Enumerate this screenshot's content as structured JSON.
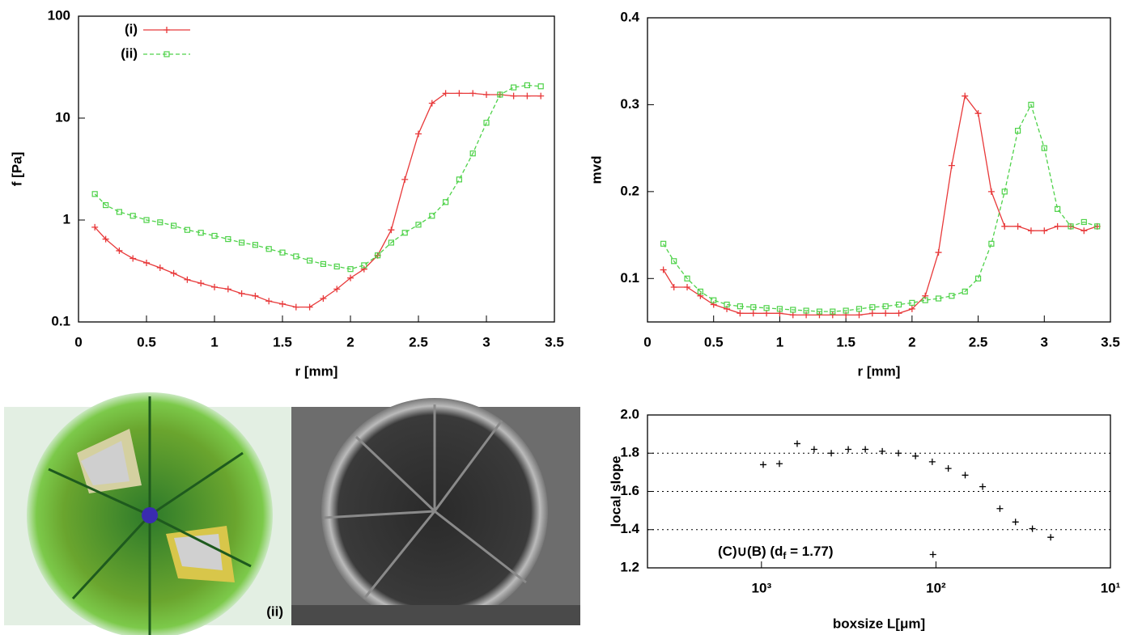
{
  "chart_data": [
    {
      "type": "line",
      "ylog": true,
      "ylabel": "f [Pa]",
      "xlabel": "r [mm]",
      "xlim": [
        0,
        3.5
      ],
      "xticks": [
        0,
        0.5,
        1,
        1.5,
        2,
        2.5,
        3,
        3.5
      ],
      "ylim": [
        0.1,
        100
      ],
      "yticks": [
        0.1,
        1,
        10,
        100
      ],
      "x": [
        0.12,
        0.2,
        0.3,
        0.4,
        0.5,
        0.6,
        0.7,
        0.8,
        0.9,
        1.0,
        1.1,
        1.2,
        1.3,
        1.4,
        1.5,
        1.6,
        1.7,
        1.8,
        1.9,
        2.0,
        2.1,
        2.2,
        2.3,
        2.4,
        2.5,
        2.6,
        2.7,
        2.8,
        2.9,
        3.0,
        3.1,
        3.2,
        3.3,
        3.4
      ],
      "series": [
        {
          "name": "(i)",
          "color": "#e8393a",
          "marker": "plus",
          "line_style": "solid",
          "values": [
            0.85,
            0.65,
            0.5,
            0.42,
            0.38,
            0.34,
            0.3,
            0.26,
            0.24,
            0.22,
            0.21,
            0.19,
            0.18,
            0.16,
            0.15,
            0.14,
            0.14,
            0.17,
            0.21,
            0.27,
            0.33,
            0.45,
            0.8,
            2.5,
            7,
            14,
            17.5,
            17.5,
            17.5,
            17,
            17,
            16.5,
            16.5,
            16.5
          ]
        },
        {
          "name": "(ii)",
          "color": "#4fd24a",
          "marker": "square",
          "line_style": "dashed",
          "values": [
            1.8,
            1.4,
            1.2,
            1.1,
            1.0,
            0.95,
            0.88,
            0.8,
            0.75,
            0.7,
            0.65,
            0.6,
            0.57,
            0.52,
            0.48,
            0.44,
            0.4,
            0.37,
            0.35,
            0.33,
            0.36,
            0.45,
            0.6,
            0.75,
            0.9,
            1.1,
            1.5,
            2.5,
            4.5,
            9,
            17,
            20,
            21,
            20.5
          ]
        }
      ],
      "legend": "top-left"
    },
    {
      "type": "line",
      "ylabel": "mvd",
      "xlabel": "r [mm]",
      "xlim": [
        0,
        3.5
      ],
      "xticks": [
        0,
        0.5,
        1,
        1.5,
        2,
        2.5,
        3,
        3.5
      ],
      "ylim": [
        0.05,
        0.4
      ],
      "yticks": [
        0.1,
        0.2,
        0.3,
        0.4
      ],
      "x": [
        0.12,
        0.2,
        0.3,
        0.4,
        0.5,
        0.6,
        0.7,
        0.8,
        0.9,
        1.0,
        1.1,
        1.2,
        1.3,
        1.4,
        1.5,
        1.6,
        1.7,
        1.8,
        1.9,
        2.0,
        2.1,
        2.2,
        2.3,
        2.4,
        2.5,
        2.6,
        2.7,
        2.8,
        2.9,
        3.0,
        3.1,
        3.2,
        3.3,
        3.4
      ],
      "series": [
        {
          "color": "#e8393a",
          "marker": "plus",
          "line_style": "solid",
          "values": [
            0.11,
            0.09,
            0.09,
            0.08,
            0.07,
            0.065,
            0.06,
            0.06,
            0.06,
            0.06,
            0.058,
            0.058,
            0.058,
            0.058,
            0.058,
            0.058,
            0.06,
            0.06,
            0.06,
            0.065,
            0.08,
            0.13,
            0.23,
            0.31,
            0.29,
            0.2,
            0.16,
            0.16,
            0.155,
            0.155,
            0.16,
            0.16,
            0.155,
            0.16
          ]
        },
        {
          "color": "#4fd24a",
          "marker": "square",
          "line_style": "dashed",
          "values": [
            0.14,
            0.12,
            0.1,
            0.085,
            0.075,
            0.07,
            0.068,
            0.067,
            0.066,
            0.065,
            0.064,
            0.063,
            0.062,
            0.062,
            0.063,
            0.065,
            0.067,
            0.068,
            0.07,
            0.072,
            0.075,
            0.077,
            0.08,
            0.085,
            0.1,
            0.14,
            0.2,
            0.27,
            0.3,
            0.25,
            0.18,
            0.16,
            0.165,
            0.16
          ]
        }
      ]
    },
    {
      "type": "scatter",
      "xlog": true,
      "grid": true,
      "ylabel": "local slope",
      "xlabel": "boxsize L[μm]",
      "xlim": [
        4500,
        10
      ],
      "xticks": [
        {
          "value": 1000,
          "label": "10³"
        },
        {
          "value": 100,
          "label": "10²"
        },
        {
          "value": 10,
          "label": "10¹"
        }
      ],
      "ylim": [
        1.2,
        2.0
      ],
      "yticks": [
        {
          "value": 2.0,
          "label": "2.0"
        },
        1.8,
        1.6,
        1.4,
        1.2
      ],
      "color": "#000000",
      "x": [
        977,
        789,
        624,
        499,
        398,
        318,
        254,
        203,
        164,
        131,
        105,
        85,
        68,
        54,
        43,
        35,
        28,
        22,
        104
      ],
      "values": [
        1.74,
        1.745,
        1.85,
        1.82,
        1.8,
        1.82,
        1.82,
        1.81,
        1.8,
        1.785,
        1.755,
        1.72,
        1.685,
        1.625,
        1.51,
        1.44,
        1.405,
        1.36,
        1.27
      ],
      "annotation": {
        "prefix": "(C)∪(B) (d",
        "sub": "f",
        "suffix": " = 1.77)"
      }
    }
  ],
  "images": {
    "label": "(ii)"
  }
}
